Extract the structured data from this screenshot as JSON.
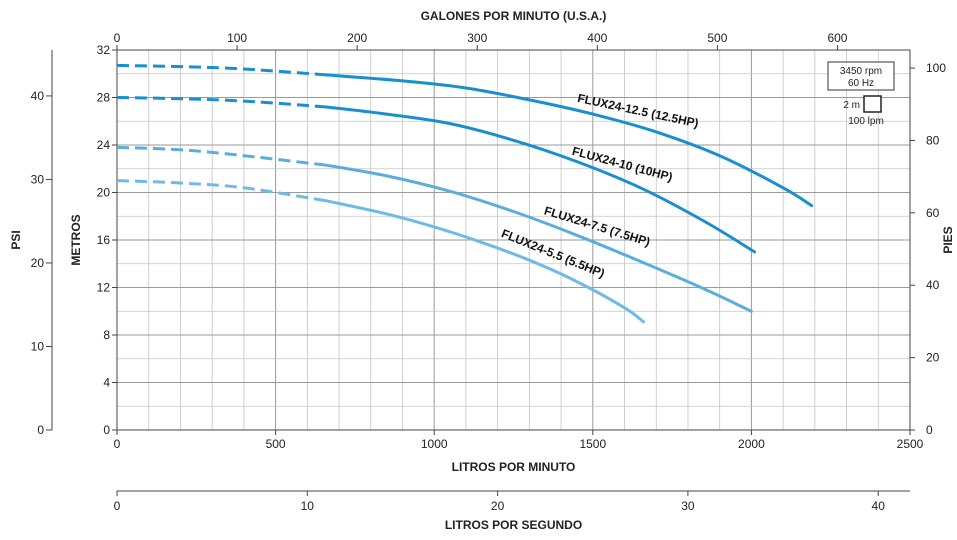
{
  "chart_data": {
    "type": "line",
    "axes": {
      "top": {
        "label": "GALONES POR MINUTO (U.S.A.)",
        "range": [
          0,
          660.4
        ],
        "ticks": [
          0,
          100,
          200,
          300,
          400,
          500,
          600
        ]
      },
      "bottom": {
        "label": "LITROS POR MINUTO",
        "range": [
          0,
          2500
        ],
        "ticks": [
          0,
          500,
          1000,
          1500,
          2000,
          2500
        ]
      },
      "bottom2": {
        "label": "LITROS POR SEGUNDO",
        "range": [
          0,
          41.67
        ],
        "ticks": [
          0,
          10,
          20,
          30,
          40
        ]
      },
      "left_inner": {
        "label": "METROS",
        "range": [
          0,
          32
        ],
        "ticks": [
          0,
          4,
          8,
          12,
          16,
          20,
          24,
          28,
          32
        ]
      },
      "left_outer": {
        "label": "PSI",
        "range": [
          0,
          45.5
        ],
        "ticks": [
          0,
          10,
          20,
          30,
          40
        ]
      },
      "right": {
        "label": "PIES",
        "range": [
          0,
          105
        ],
        "ticks": [
          0,
          20,
          40,
          60,
          80,
          100
        ]
      }
    },
    "grid": true,
    "grid_minor_x_step": 100,
    "grid_minor_y_step": 2,
    "legend": {
      "box_lines": [
        "3450 rpm",
        "60 Hz"
      ],
      "scale_y": "2 m",
      "scale_x": "100 lpm"
    },
    "series": [
      {
        "name": "FLUX24-12.5 (12.5HP)",
        "color": "#1a8fcf",
        "dashed_until_x": 660,
        "x": [
          0,
          200,
          400,
          660,
          900,
          1100,
          1300,
          1500,
          1700,
          1900,
          2100,
          2190
        ],
        "y": [
          30.7,
          30.6,
          30.4,
          29.9,
          29.4,
          28.8,
          27.8,
          26.6,
          25.1,
          23.1,
          20.4,
          18.9
        ]
      },
      {
        "name": "FLUX24-10 (10HP)",
        "color": "#1a8fcf",
        "dashed_until_x": 660,
        "x": [
          0,
          200,
          400,
          660,
          850,
          1050,
          1250,
          1450,
          1650,
          1850,
          2010
        ],
        "y": [
          28.0,
          27.9,
          27.7,
          27.2,
          26.6,
          25.8,
          24.4,
          22.6,
          20.4,
          17.6,
          15.0
        ]
      },
      {
        "name": "FLUX24-7.5 (7.5HP)",
        "color": "#5aaedd",
        "dashed_until_x": 660,
        "x": [
          0,
          200,
          400,
          660,
          850,
          1050,
          1250,
          1450,
          1650,
          1850,
          2000
        ],
        "y": [
          23.8,
          23.6,
          23.1,
          22.3,
          21.4,
          20.1,
          18.4,
          16.4,
          14.2,
          11.9,
          10.0
        ]
      },
      {
        "name": "FLUX24-5.5 (5.5HP)",
        "color": "#6fbbe5",
        "dashed_until_x": 660,
        "x": [
          0,
          200,
          400,
          660,
          850,
          1000,
          1150,
          1300,
          1450,
          1600,
          1660
        ],
        "y": [
          21.0,
          20.8,
          20.4,
          19.3,
          18.2,
          17.1,
          15.8,
          14.3,
          12.5,
          10.3,
          9.1
        ]
      }
    ]
  }
}
